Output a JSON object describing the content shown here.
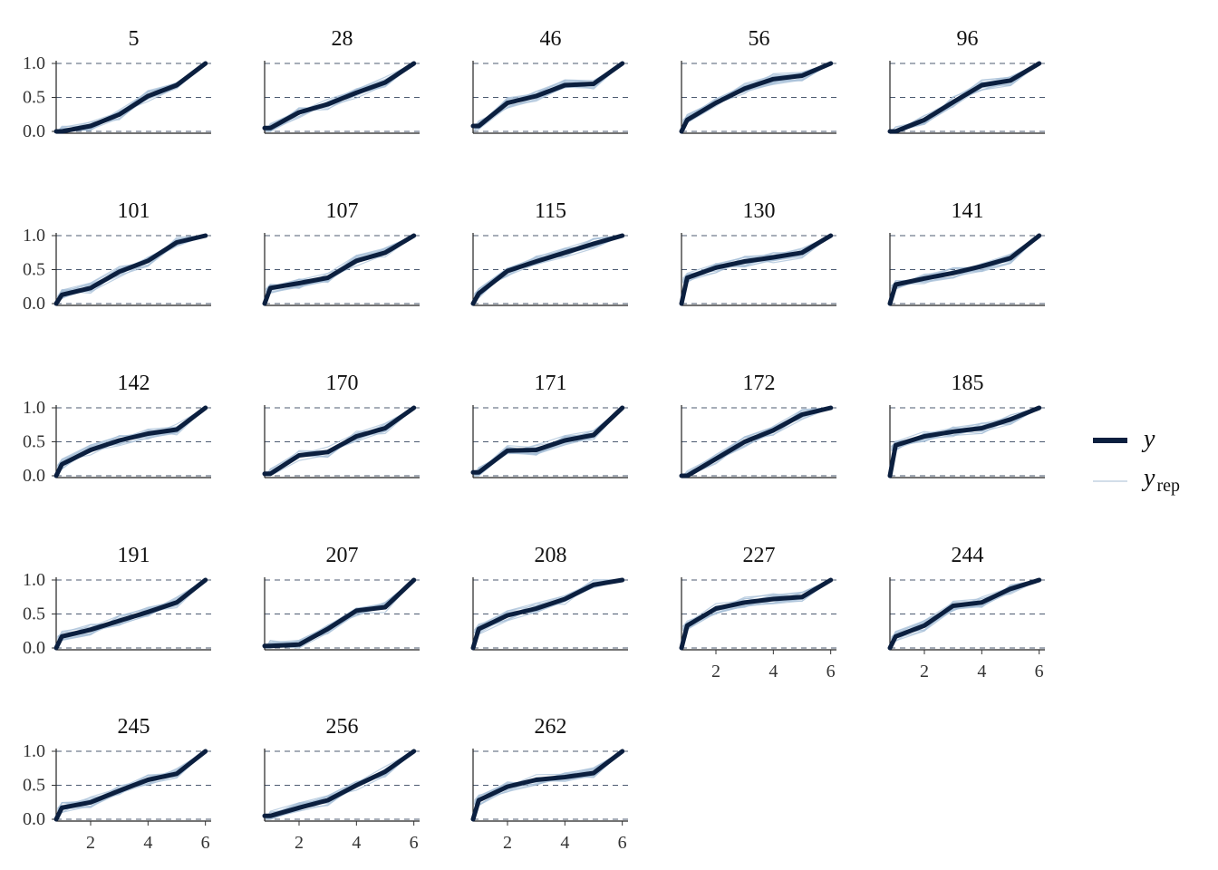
{
  "chart_data": {
    "type": "line",
    "layout": "facet-grid",
    "ncol": 5,
    "x_ticks": [
      2,
      4,
      6
    ],
    "y_ticks": [
      "0.0",
      "0.5",
      "1.0"
    ],
    "xlim": [
      0.8,
      6.2
    ],
    "ylim": [
      0,
      1
    ],
    "hlines": [
      0,
      0.5,
      1
    ],
    "x": [
      1,
      2,
      3,
      4,
      5,
      6
    ],
    "legend": {
      "position": "right",
      "y": {
        "label": "y",
        "color": "#0b1f3f"
      },
      "yrep": {
        "label": "y",
        "sub": "rep",
        "color": "#b4c9dc"
      }
    },
    "colors": {
      "y": "#0b1f3f",
      "yrep": "#a8c0d8",
      "hline": "#2f3f5a"
    },
    "panels": [
      {
        "id": "5",
        "show_x": false,
        "y": [
          0.0,
          0.08,
          0.25,
          0.52,
          0.68,
          1.0
        ]
      },
      {
        "id": "28",
        "show_x": false,
        "y": [
          0.05,
          0.28,
          0.4,
          0.57,
          0.72,
          1.0
        ]
      },
      {
        "id": "46",
        "show_x": false,
        "y": [
          0.08,
          0.42,
          0.52,
          0.68,
          0.7,
          1.0
        ]
      },
      {
        "id": "56",
        "show_x": false,
        "y": [
          0.17,
          0.42,
          0.63,
          0.77,
          0.82,
          1.0
        ]
      },
      {
        "id": "96",
        "show_x": false,
        "y": [
          0.0,
          0.17,
          0.43,
          0.68,
          0.75,
          1.0
        ]
      },
      {
        "id": "101",
        "show_x": false,
        "y": [
          0.13,
          0.23,
          0.47,
          0.63,
          0.9,
          1.0
        ]
      },
      {
        "id": "107",
        "show_x": false,
        "y": [
          0.23,
          0.3,
          0.38,
          0.63,
          0.75,
          1.0
        ]
      },
      {
        "id": "115",
        "show_x": false,
        "y": [
          0.15,
          0.48,
          0.62,
          0.75,
          0.88,
          1.0
        ]
      },
      {
        "id": "130",
        "show_x": false,
        "y": [
          0.38,
          0.53,
          0.62,
          0.68,
          0.75,
          1.0
        ]
      },
      {
        "id": "141",
        "show_x": false,
        "y": [
          0.28,
          0.37,
          0.45,
          0.55,
          0.67,
          1.0
        ]
      },
      {
        "id": "142",
        "show_x": false,
        "y": [
          0.17,
          0.38,
          0.52,
          0.62,
          0.68,
          1.0
        ]
      },
      {
        "id": "170",
        "show_x": false,
        "y": [
          0.03,
          0.3,
          0.35,
          0.58,
          0.7,
          1.0
        ]
      },
      {
        "id": "171",
        "show_x": false,
        "y": [
          0.05,
          0.37,
          0.38,
          0.52,
          0.6,
          1.0
        ]
      },
      {
        "id": "172",
        "show_x": false,
        "y": [
          0.0,
          0.25,
          0.5,
          0.67,
          0.9,
          1.0
        ]
      },
      {
        "id": "185",
        "show_x": false,
        "y": [
          0.45,
          0.58,
          0.65,
          0.7,
          0.83,
          1.0
        ]
      },
      {
        "id": "191",
        "show_x": false,
        "y": [
          0.17,
          0.27,
          0.4,
          0.53,
          0.67,
          1.0
        ]
      },
      {
        "id": "207",
        "show_x": false,
        "y": [
          0.03,
          0.05,
          0.28,
          0.55,
          0.6,
          1.0
        ]
      },
      {
        "id": "208",
        "show_x": false,
        "y": [
          0.28,
          0.48,
          0.58,
          0.72,
          0.93,
          1.0
        ]
      },
      {
        "id": "227",
        "show_x": true,
        "y": [
          0.33,
          0.58,
          0.67,
          0.72,
          0.75,
          1.0
        ]
      },
      {
        "id": "244",
        "show_x": true,
        "y": [
          0.17,
          0.33,
          0.62,
          0.67,
          0.87,
          1.0
        ]
      },
      {
        "id": "245",
        "show_x": true,
        "y": [
          0.17,
          0.25,
          0.42,
          0.58,
          0.67,
          1.0
        ]
      },
      {
        "id": "256",
        "show_x": true,
        "y": [
          0.05,
          0.17,
          0.28,
          0.5,
          0.7,
          1.0
        ]
      },
      {
        "id": "262",
        "show_x": true,
        "y": [
          0.28,
          0.48,
          0.58,
          0.62,
          0.68,
          1.0
        ]
      }
    ]
  }
}
